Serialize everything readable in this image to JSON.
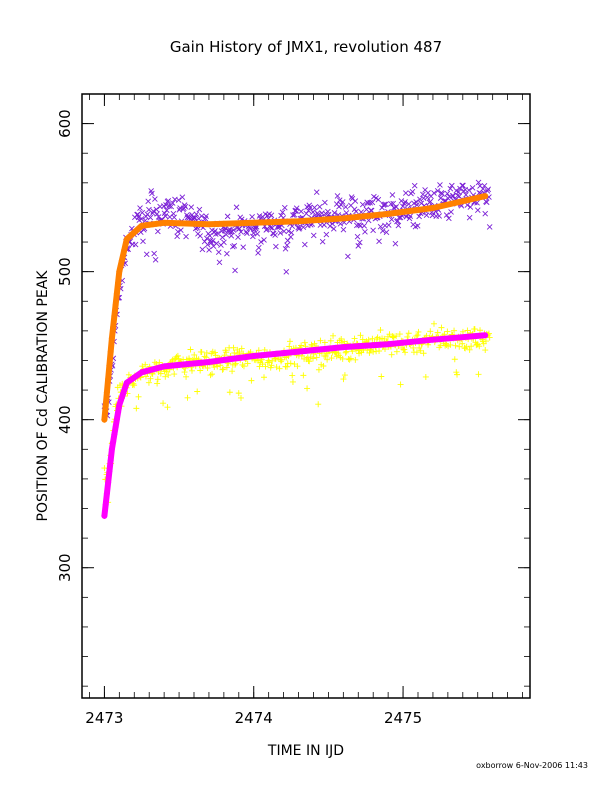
{
  "chart_data": {
    "type": "scatter",
    "title": "Gain History of JMX1, revolution 487",
    "xlabel": "TIME IN IJD",
    "ylabel": "POSITION OF Cd CALIBRATION PEAK",
    "footer": "oxborrow  6-Nov-2006 11:43",
    "xlim": [
      2472.85,
      2475.85
    ],
    "ylim": [
      212,
      620
    ],
    "x_ticks": [
      2473,
      2474,
      2475
    ],
    "x_tick_labels": [
      "2473",
      "2474",
      "2475"
    ],
    "y_ticks": [
      300,
      400,
      500,
      600
    ],
    "y_tick_labels": [
      "300",
      "400",
      "500",
      "600"
    ],
    "grid": false,
    "series": [
      {
        "marker": "x",
        "color": "#7a1fd6",
        "x_range": [
          2473.0,
          2475.58
        ],
        "approx_points": [
          [
            2473.02,
            405
          ],
          [
            2473.08,
            470
          ],
          [
            2473.15,
            520
          ],
          [
            2473.3,
            540
          ],
          [
            2473.5,
            540
          ],
          [
            2473.7,
            525
          ],
          [
            2474.0,
            530
          ],
          [
            2474.3,
            535
          ],
          [
            2474.6,
            540
          ],
          [
            2474.9,
            540
          ],
          [
            2475.2,
            545
          ],
          [
            2475.5,
            550
          ]
        ]
      },
      {
        "marker": "+",
        "color": "#ffff00",
        "x_range": [
          2473.0,
          2475.58
        ],
        "approx_points": [
          [
            2473.02,
            360
          ],
          [
            2473.08,
            410
          ],
          [
            2473.2,
            430
          ],
          [
            2473.5,
            438
          ],
          [
            2473.8,
            440
          ],
          [
            2474.1,
            442
          ],
          [
            2474.4,
            445
          ],
          [
            2474.7,
            450
          ],
          [
            2475.0,
            452
          ],
          [
            2475.3,
            455
          ],
          [
            2475.55,
            455
          ]
        ]
      },
      {
        "marker": "fit",
        "color": "#ff8000",
        "points": [
          [
            2473.0,
            400
          ],
          [
            2473.05,
            455
          ],
          [
            2473.1,
            500
          ],
          [
            2473.15,
            522
          ],
          [
            2473.25,
            531
          ],
          [
            2473.4,
            533
          ],
          [
            2473.7,
            532
          ],
          [
            2474.0,
            533
          ],
          [
            2474.3,
            534
          ],
          [
            2474.6,
            536
          ],
          [
            2474.9,
            539
          ],
          [
            2475.2,
            543
          ],
          [
            2475.55,
            551
          ]
        ]
      },
      {
        "marker": "fit",
        "color": "#ff00ff",
        "points": [
          [
            2473.0,
            335
          ],
          [
            2473.05,
            380
          ],
          [
            2473.1,
            410
          ],
          [
            2473.15,
            425
          ],
          [
            2473.25,
            432
          ],
          [
            2473.4,
            436
          ],
          [
            2473.7,
            439
          ],
          [
            2474.0,
            443
          ],
          [
            2474.3,
            446
          ],
          [
            2474.6,
            449
          ],
          [
            2474.9,
            451
          ],
          [
            2475.2,
            454
          ],
          [
            2475.55,
            457
          ]
        ]
      }
    ]
  }
}
